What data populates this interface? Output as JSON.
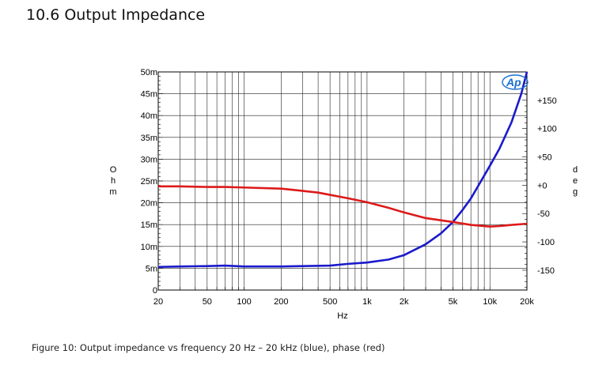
{
  "heading": "10.6  Output Impedance",
  "caption": "Figure 10: Output impedance vs frequency 20 Hz – 20 kHz (blue), phase (red)",
  "chart_data": {
    "type": "line",
    "xscale": "log",
    "xlim": [
      20,
      20000
    ],
    "x_ticks": [
      {
        "v": 20,
        "label": "20"
      },
      {
        "v": 50,
        "label": "50"
      },
      {
        "v": 100,
        "label": "100"
      },
      {
        "v": 200,
        "label": "200"
      },
      {
        "v": 500,
        "label": "500"
      },
      {
        "v": 1000,
        "label": "1k"
      },
      {
        "v": 2000,
        "label": "2k"
      },
      {
        "v": 5000,
        "label": "5k"
      },
      {
        "v": 10000,
        "label": "10k"
      },
      {
        "v": 20000,
        "label": "20k"
      }
    ],
    "xlabel": "Hz",
    "ylim_left": [
      0,
      50
    ],
    "y_ticks_left": [
      {
        "v": 0,
        "label": "0"
      },
      {
        "v": 5,
        "label": "5m"
      },
      {
        "v": 10,
        "label": "10m"
      },
      {
        "v": 15,
        "label": "15m"
      },
      {
        "v": 20,
        "label": "20m"
      },
      {
        "v": 25,
        "label": "25m"
      },
      {
        "v": 30,
        "label": "30m"
      },
      {
        "v": 35,
        "label": "35m"
      },
      {
        "v": 40,
        "label": "40m"
      },
      {
        "v": 45,
        "label": "45m"
      },
      {
        "v": 50,
        "label": "50m"
      }
    ],
    "ylabel_left": [
      "O",
      "h",
      "m"
    ],
    "ylim_right": [
      -185,
      200
    ],
    "y_ticks_right": [
      {
        "v": 150,
        "label": "+150"
      },
      {
        "v": 100,
        "label": "+100"
      },
      {
        "v": 50,
        "label": "+50"
      },
      {
        "v": 0,
        "label": "+0"
      },
      {
        "v": -50,
        "label": "-50"
      },
      {
        "v": -100,
        "label": "-100"
      },
      {
        "v": -150,
        "label": "-150"
      }
    ],
    "ylabel_right": [
      "d",
      "e",
      "g"
    ],
    "grid": true,
    "logo_text": "Ap",
    "series": [
      {
        "axis": "left",
        "color": "#1a1acc",
        "points": [
          [
            20,
            5.3
          ],
          [
            30,
            5.4
          ],
          [
            50,
            5.5
          ],
          [
            70,
            5.6
          ],
          [
            100,
            5.4
          ],
          [
            200,
            5.4
          ],
          [
            300,
            5.5
          ],
          [
            500,
            5.6
          ],
          [
            700,
            6.0
          ],
          [
            1000,
            6.3
          ],
          [
            1500,
            7.0
          ],
          [
            2000,
            8.0
          ],
          [
            3000,
            10.5
          ],
          [
            4000,
            13.0
          ],
          [
            5000,
            15.6
          ],
          [
            6000,
            18.4
          ],
          [
            7000,
            21.0
          ],
          [
            8000,
            23.8
          ],
          [
            10000,
            28.5
          ],
          [
            12000,
            32.5
          ],
          [
            15000,
            38.5
          ],
          [
            18000,
            45.0
          ],
          [
            20000,
            50.0
          ]
        ]
      },
      {
        "axis": "right",
        "color": "#dd1a1a",
        "points": [
          [
            20,
            -2
          ],
          [
            30,
            -2
          ],
          [
            50,
            -3
          ],
          [
            70,
            -3
          ],
          [
            100,
            -4
          ],
          [
            200,
            -6
          ],
          [
            300,
            -10
          ],
          [
            400,
            -13
          ],
          [
            500,
            -17
          ],
          [
            700,
            -23
          ],
          [
            1000,
            -30
          ],
          [
            1500,
            -40
          ],
          [
            2000,
            -48
          ],
          [
            3000,
            -58
          ],
          [
            5000,
            -65
          ],
          [
            7000,
            -70
          ],
          [
            10000,
            -73
          ],
          [
            12000,
            -72
          ],
          [
            15000,
            -70
          ],
          [
            20000,
            -68
          ]
        ]
      }
    ]
  }
}
